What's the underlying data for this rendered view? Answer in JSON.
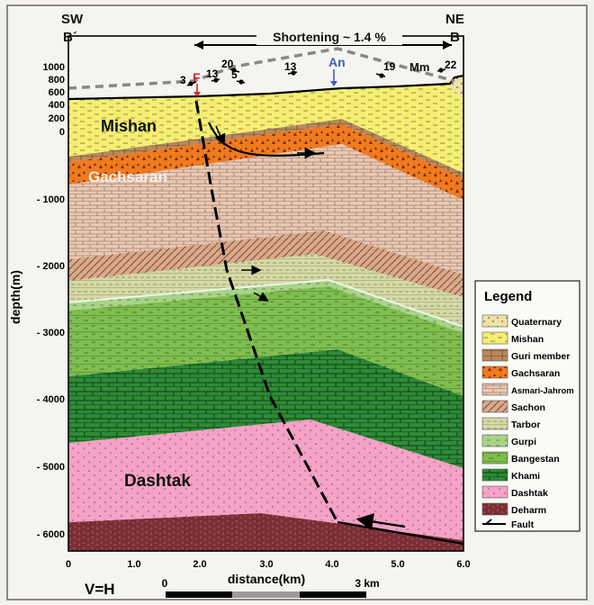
{
  "corners": {
    "left_dir": "SW",
    "left_label": "B´",
    "right_dir": "NE",
    "right_label": "B"
  },
  "shortening": "Shortening ~ 1.4 %",
  "markers": {
    "fault": "F",
    "anticline": "An",
    "formation_tag": "Mm"
  },
  "dip_labels": [
    "3",
    "13",
    "20",
    "5",
    "13",
    "19",
    "22"
  ],
  "y_axis": {
    "label": "depth(m)",
    "elev_ticks": [
      "1000",
      "800",
      "600",
      "400",
      "200",
      "0"
    ],
    "depth_ticks": [
      "- 1000",
      "- 2000",
      "- 3000",
      "- 4000",
      "- 5000",
      "- 6000"
    ]
  },
  "x_axis": {
    "label": "distance(km)",
    "ticks": [
      "0",
      "1.0",
      "2.0",
      "3.0",
      "4.0",
      "5.0",
      "6.0"
    ]
  },
  "section_labels": {
    "mishan": "Mishan",
    "gachsaran": "Gachsaran",
    "dashtak": "Dashtak"
  },
  "scale": {
    "ratio": "V=H",
    "start": "0",
    "end": "3 km"
  },
  "legend": {
    "title": "Legend",
    "items": [
      {
        "name": "Quaternary",
        "color": "#efe2a6"
      },
      {
        "name": "Mishan",
        "color": "#f4ef73"
      },
      {
        "name": "Guri member",
        "color": "#b9895a"
      },
      {
        "name": "Gachsaran",
        "color": "#f07a1e"
      },
      {
        "name": "Asmari-Jahrom",
        "color": "#e7c9b5"
      },
      {
        "name": "Sachon",
        "color": "#d8a98a"
      },
      {
        "name": "Tarbor",
        "color": "#d5d9a8"
      },
      {
        "name": "Gurpi",
        "color": "#a9d389"
      },
      {
        "name": "Bangestan",
        "color": "#7fbe4e"
      },
      {
        "name": "Khami",
        "color": "#2e8a36"
      },
      {
        "name": "Dashtak",
        "color": "#f3a3c6"
      },
      {
        "name": "Deharm",
        "color": "#7b2e35"
      },
      {
        "name": "Fault",
        "color": "#000000"
      }
    ]
  }
}
